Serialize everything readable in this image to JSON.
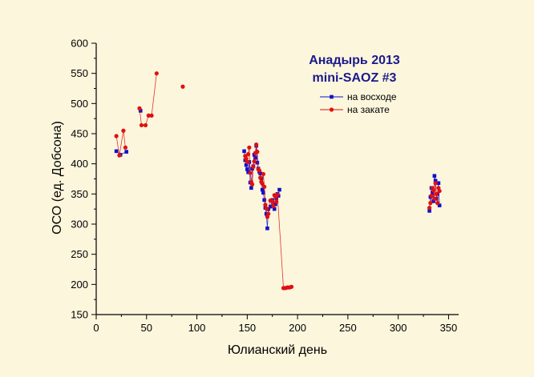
{
  "chart_data": {
    "type": "scatter",
    "title_lines": [
      "Анадырь 2013",
      "mini-SAOZ #3"
    ],
    "xlabel": "Юлианский день",
    "ylabel": "ОСО (ед. Добсона)",
    "xlim": [
      0,
      360
    ],
    "ylim": [
      150,
      600
    ],
    "xticks": [
      "0",
      "50",
      "100",
      "150",
      "200",
      "250",
      "300",
      "350"
    ],
    "yticks": [
      "150",
      "200",
      "250",
      "300",
      "350",
      "400",
      "450",
      "500",
      "550",
      "600"
    ],
    "legend_position": "top-right",
    "grid": false,
    "series": [
      {
        "name": "на восходе",
        "color": "#1010CC",
        "marker": "square",
        "points": [
          [
            20,
            421
          ],
          [
            24,
            415
          ],
          [
            30,
            420
          ],
          [
            44,
            488
          ],
          [
            147,
            421
          ],
          [
            148,
            406
          ],
          [
            149,
            398
          ],
          [
            150,
            391
          ],
          [
            151,
            386
          ],
          [
            152,
            403
          ],
          [
            153,
            369
          ],
          [
            154,
            360
          ],
          [
            155,
            392
          ],
          [
            156,
            396
          ],
          [
            157,
            415
          ],
          [
            158,
            410
          ],
          [
            159,
            430
          ],
          [
            160,
            402
          ],
          [
            161,
            392
          ],
          [
            162,
            387
          ],
          [
            163,
            384
          ],
          [
            164,
            376
          ],
          [
            165,
            357
          ],
          [
            166,
            352
          ],
          [
            167,
            340
          ],
          [
            168,
            327
          ],
          [
            169,
            317
          ],
          [
            170,
            293
          ],
          [
            171,
            325
          ],
          [
            173,
            329
          ],
          [
            175,
            340
          ],
          [
            176,
            331
          ],
          [
            177,
            325
          ],
          [
            178,
            333
          ],
          [
            179,
            343
          ],
          [
            180,
            350
          ],
          [
            181,
            347
          ],
          [
            182,
            357
          ],
          [
            331,
            322
          ],
          [
            332,
            345
          ],
          [
            333,
            360
          ],
          [
            334,
            352
          ],
          [
            335,
            338
          ],
          [
            336,
            380
          ],
          [
            337,
            372
          ],
          [
            338,
            342
          ],
          [
            339,
            350
          ],
          [
            340,
            368
          ],
          [
            341,
            331
          ]
        ]
      },
      {
        "name": "на закате",
        "color": "#E01010",
        "marker": "circle",
        "points": [
          [
            20,
            446
          ],
          [
            23,
            414
          ],
          [
            27,
            455
          ],
          [
            29,
            427
          ],
          [
            43,
            492
          ],
          [
            45,
            464
          ],
          [
            49,
            464
          ],
          [
            52,
            480
          ],
          [
            55,
            480
          ],
          [
            60,
            550
          ],
          [
            86,
            528
          ],
          [
            148,
            413
          ],
          [
            149,
            408
          ],
          [
            150,
            403
          ],
          [
            151,
            416
          ],
          [
            152,
            427
          ],
          [
            153,
            385
          ],
          [
            154,
            370
          ],
          [
            155,
            366
          ],
          [
            156,
            395
          ],
          [
            157,
            404
          ],
          [
            158,
            418
          ],
          [
            159,
            432
          ],
          [
            160,
            420
          ],
          [
            161,
            391
          ],
          [
            162,
            389
          ],
          [
            163,
            377
          ],
          [
            164,
            370
          ],
          [
            165,
            367
          ],
          [
            166,
            383
          ],
          [
            167,
            362
          ],
          [
            168,
            332
          ],
          [
            169,
            326
          ],
          [
            170,
            312
          ],
          [
            171,
            317
          ],
          [
            173,
            339
          ],
          [
            175,
            338
          ],
          [
            176,
            330
          ],
          [
            177,
            348
          ],
          [
            178,
            346
          ],
          [
            179,
            337
          ],
          [
            180,
            349
          ],
          [
            186,
            194
          ],
          [
            188,
            194
          ],
          [
            190,
            195
          ],
          [
            192,
            195
          ],
          [
            194,
            196
          ],
          [
            331,
            327
          ],
          [
            332,
            335
          ],
          [
            333,
            347
          ],
          [
            334,
            360
          ],
          [
            335,
            356
          ],
          [
            336,
            342
          ],
          [
            337,
            368
          ],
          [
            338,
            350
          ],
          [
            339,
            335
          ],
          [
            340,
            360
          ],
          [
            341,
            355
          ]
        ]
      }
    ]
  }
}
